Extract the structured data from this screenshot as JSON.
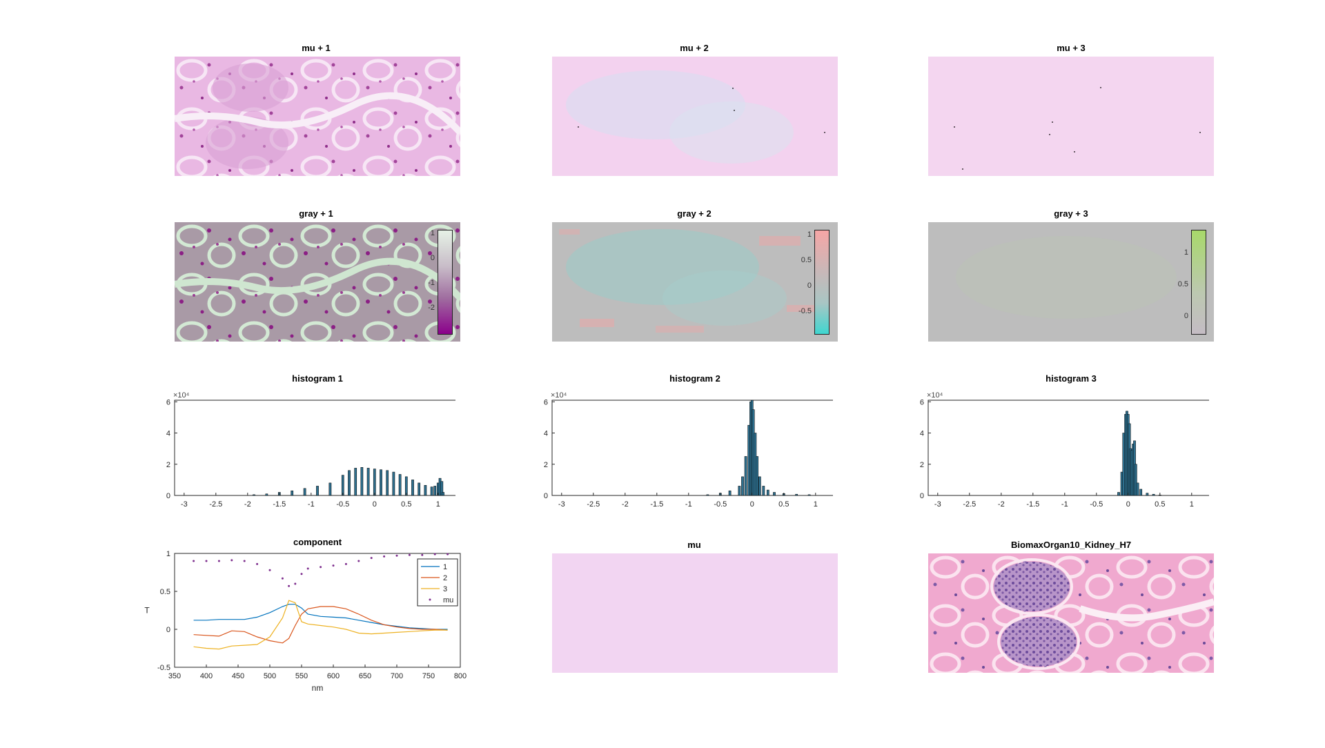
{
  "panels": {
    "mu1": {
      "title": "mu + 1"
    },
    "mu2": {
      "title": "mu + 2"
    },
    "mu3": {
      "title": "mu + 3"
    },
    "gray1": {
      "title": "gray + 1",
      "colorbar_ticks": [
        "1",
        "0",
        "-1",
        "-2"
      ],
      "colors": [
        "#e6f2e6",
        "#a06ea0",
        "#8b008b"
      ]
    },
    "gray2": {
      "title": "gray + 2",
      "colorbar_ticks": [
        "1",
        "0.5",
        "0",
        "-0.5"
      ],
      "colors": [
        "#f6a6a6",
        "#c0c0c0",
        "#3fd6d0"
      ]
    },
    "gray3": {
      "title": "gray + 3",
      "colorbar_ticks": [
        "1",
        "0.5",
        "0"
      ],
      "colors": [
        "#a8d96a",
        "#c0c0c0"
      ]
    },
    "mu": {
      "title": "mu",
      "color": "#f2d5f2"
    },
    "rgb": {
      "title": "BiomaxOrgan10_Kidney_H7"
    }
  },
  "chart_data": [
    {
      "type": "bar",
      "title": "histogram 1",
      "exponent_label": "×10⁴",
      "xticks": [
        "-3",
        "-2.5",
        "-2",
        "-1.5",
        "-1",
        "-0.5",
        "0",
        "0.5",
        "1"
      ],
      "yticks": [
        "0",
        "2",
        "4",
        "6"
      ],
      "xlim": [
        -3.15,
        1.35
      ],
      "ylim": [
        0,
        6.1
      ],
      "x": [
        -1.9,
        -1.7,
        -1.5,
        -1.3,
        -1.1,
        -0.9,
        -0.7,
        -0.5,
        -0.4,
        -0.3,
        -0.2,
        -0.1,
        0,
        0.1,
        0.2,
        0.3,
        0.4,
        0.5,
        0.6,
        0.7,
        0.8,
        0.9,
        0.95,
        1.0,
        1.03,
        1.06,
        1.08
      ],
      "values": [
        0.05,
        0.1,
        0.2,
        0.3,
        0.45,
        0.6,
        0.8,
        1.3,
        1.6,
        1.75,
        1.8,
        1.75,
        1.7,
        1.65,
        1.6,
        1.5,
        1.35,
        1.2,
        1.0,
        0.8,
        0.65,
        0.55,
        0.6,
        0.8,
        1.1,
        0.9,
        0.2
      ]
    },
    {
      "type": "bar",
      "title": "histogram 2",
      "exponent_label": "×10⁴",
      "xticks": [
        "-3",
        "-2.5",
        "-2",
        "-1.5",
        "-1",
        "-0.5",
        "0",
        "0.5",
        "1"
      ],
      "yticks": [
        "0",
        "2",
        "4",
        "6"
      ],
      "xlim": [
        -3.15,
        1.35
      ],
      "ylim": [
        0,
        6.1
      ],
      "x": [
        -0.7,
        -0.5,
        -0.35,
        -0.2,
        -0.15,
        -0.1,
        -0.05,
        -0.02,
        0.0,
        0.02,
        0.05,
        0.08,
        0.12,
        0.18,
        0.25,
        0.35,
        0.5,
        0.7,
        0.9
      ],
      "values": [
        0.05,
        0.15,
        0.3,
        0.6,
        1.2,
        2.5,
        4.5,
        6.0,
        6.1,
        5.5,
        4.0,
        2.5,
        1.2,
        0.6,
        0.35,
        0.2,
        0.12,
        0.08,
        0.05
      ]
    },
    {
      "type": "bar",
      "title": "histogram 3",
      "exponent_label": "×10⁴",
      "xticks": [
        "-3",
        "-2.5",
        "-2",
        "-1.5",
        "-1",
        "-0.5",
        "0",
        "0.5",
        "1"
      ],
      "yticks": [
        "0",
        "2",
        "4",
        "6"
      ],
      "xlim": [
        -3.15,
        1.35
      ],
      "ylim": [
        0,
        6.1
      ],
      "x": [
        -0.15,
        -0.1,
        -0.07,
        -0.04,
        -0.02,
        0.0,
        0.02,
        0.04,
        0.06,
        0.08,
        0.1,
        0.12,
        0.15,
        0.2,
        0.3,
        0.4,
        0.5
      ],
      "values": [
        0.2,
        1.5,
        4.0,
        5.2,
        5.4,
        5.2,
        4.6,
        3.0,
        2.9,
        3.3,
        3.5,
        2.0,
        0.8,
        0.4,
        0.15,
        0.08,
        0.03
      ]
    },
    {
      "type": "line",
      "title": "component",
      "xlabel": "nm",
      "ylabel": "T",
      "xlim": [
        350,
        800
      ],
      "ylim": [
        -0.5,
        1
      ],
      "xticks": [
        "350",
        "400",
        "450",
        "500",
        "550",
        "600",
        "650",
        "700",
        "750",
        "800"
      ],
      "yticks": [
        "-0.5",
        "0",
        "0.5",
        "1"
      ],
      "legend": "top-right",
      "x": [
        380,
        400,
        420,
        440,
        460,
        480,
        500,
        520,
        530,
        540,
        550,
        560,
        580,
        600,
        620,
        640,
        660,
        680,
        700,
        720,
        740,
        760,
        780
      ],
      "series": [
        {
          "name": "1",
          "color": "#0072bd",
          "values": [
            0.12,
            0.12,
            0.13,
            0.13,
            0.13,
            0.16,
            0.22,
            0.3,
            0.33,
            0.33,
            0.28,
            0.2,
            0.17,
            0.16,
            0.15,
            0.12,
            0.09,
            0.06,
            0.04,
            0.02,
            0.01,
            0.0,
            0.0
          ]
        },
        {
          "name": "2",
          "color": "#d95319",
          "values": [
            -0.07,
            -0.08,
            -0.09,
            -0.02,
            -0.03,
            -0.1,
            -0.15,
            -0.18,
            -0.12,
            0.05,
            0.2,
            0.27,
            0.3,
            0.3,
            0.27,
            0.2,
            0.12,
            0.06,
            0.03,
            0.01,
            0.0,
            0.0,
            -0.01
          ]
        },
        {
          "name": "3",
          "color": "#edb120",
          "values": [
            -0.23,
            -0.25,
            -0.26,
            -0.22,
            -0.21,
            -0.2,
            -0.1,
            0.15,
            0.38,
            0.35,
            0.1,
            0.07,
            0.05,
            0.03,
            0.0,
            -0.05,
            -0.06,
            -0.05,
            -0.04,
            -0.03,
            -0.02,
            -0.01,
            -0.01
          ]
        },
        {
          "name": "mu",
          "color": "#7e2f8e",
          "style": "dots",
          "values": [
            0.9,
            0.9,
            0.9,
            0.91,
            0.9,
            0.86,
            0.78,
            0.67,
            0.57,
            0.6,
            0.73,
            0.8,
            0.82,
            0.84,
            0.86,
            0.9,
            0.94,
            0.96,
            0.97,
            0.98,
            0.98,
            0.99,
            0.99
          ]
        }
      ]
    }
  ]
}
